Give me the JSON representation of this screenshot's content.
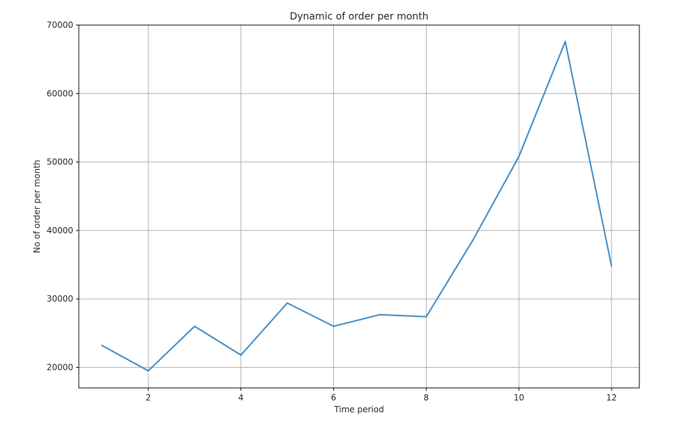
{
  "chart_data": {
    "type": "line",
    "title": "Dynamic of order per month",
    "xlabel": "Time period",
    "ylabel": "No of order per month",
    "x": [
      1,
      2,
      3,
      4,
      5,
      6,
      7,
      8,
      9,
      10,
      11,
      12
    ],
    "series": [
      {
        "values": [
          23200,
          19500,
          26000,
          21800,
          29400,
          26000,
          27700,
          27400,
          38500,
          50800,
          67600,
          34800
        ],
        "color": "#3a86c0"
      }
    ],
    "xlim": [
      0.5,
      12.6
    ],
    "ylim": [
      17000,
      70000
    ],
    "xticks": [
      2,
      4,
      6,
      8,
      10,
      12
    ],
    "yticks": [
      20000,
      30000,
      40000,
      50000,
      60000,
      70000
    ],
    "xtick_labels": [
      "2",
      "4",
      "6",
      "8",
      "10",
      "12"
    ],
    "ytick_labels": [
      "20000",
      "30000",
      "40000",
      "50000",
      "60000",
      "70000"
    ],
    "grid": true,
    "legend": "none"
  }
}
